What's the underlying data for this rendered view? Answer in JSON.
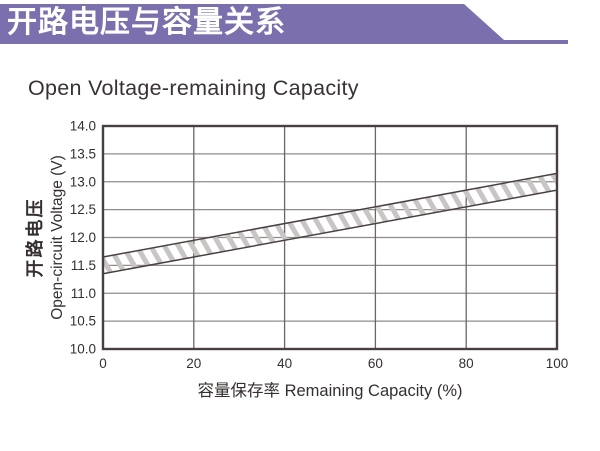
{
  "header": {
    "title": "开路电压与容量关系"
  },
  "colors": {
    "header_purple": "#7b70ad",
    "header_text": "#ffffff",
    "title_text": "#393232",
    "axis_border": "#474040",
    "grid_h": "#918c8c",
    "grid_v": "#6b6565",
    "band_edge": "#4a4242",
    "band_hatch": "#c9c5c5",
    "tick_text": "#352f2f",
    "label_text": "#352f2f"
  },
  "chart_data": {
    "type": "area",
    "title": "Open Voltage-remaining Capacity",
    "xlabel": "容量保存率 Remaining Capacity (%)",
    "ylabel_cn": "开路电压",
    "ylabel_en": "Open-circuit Voltage (V)",
    "xlim": [
      0,
      100
    ],
    "ylim": [
      10.0,
      14.0
    ],
    "xticks": [
      0,
      20,
      40,
      60,
      80,
      100
    ],
    "ytick_labels": [
      "14.0",
      "13.5",
      "13.0",
      "12.5",
      "12.0",
      "11.5",
      "11.0",
      "10.5",
      "10.0"
    ],
    "grid": true,
    "legend": null,
    "band": {
      "name": "open-circuit-voltage-range-band",
      "style": "diagonal-hatch",
      "x": [
        0,
        100
      ],
      "upper_v": [
        11.65,
        13.15
      ],
      "lower_v": [
        11.35,
        12.85
      ]
    }
  }
}
